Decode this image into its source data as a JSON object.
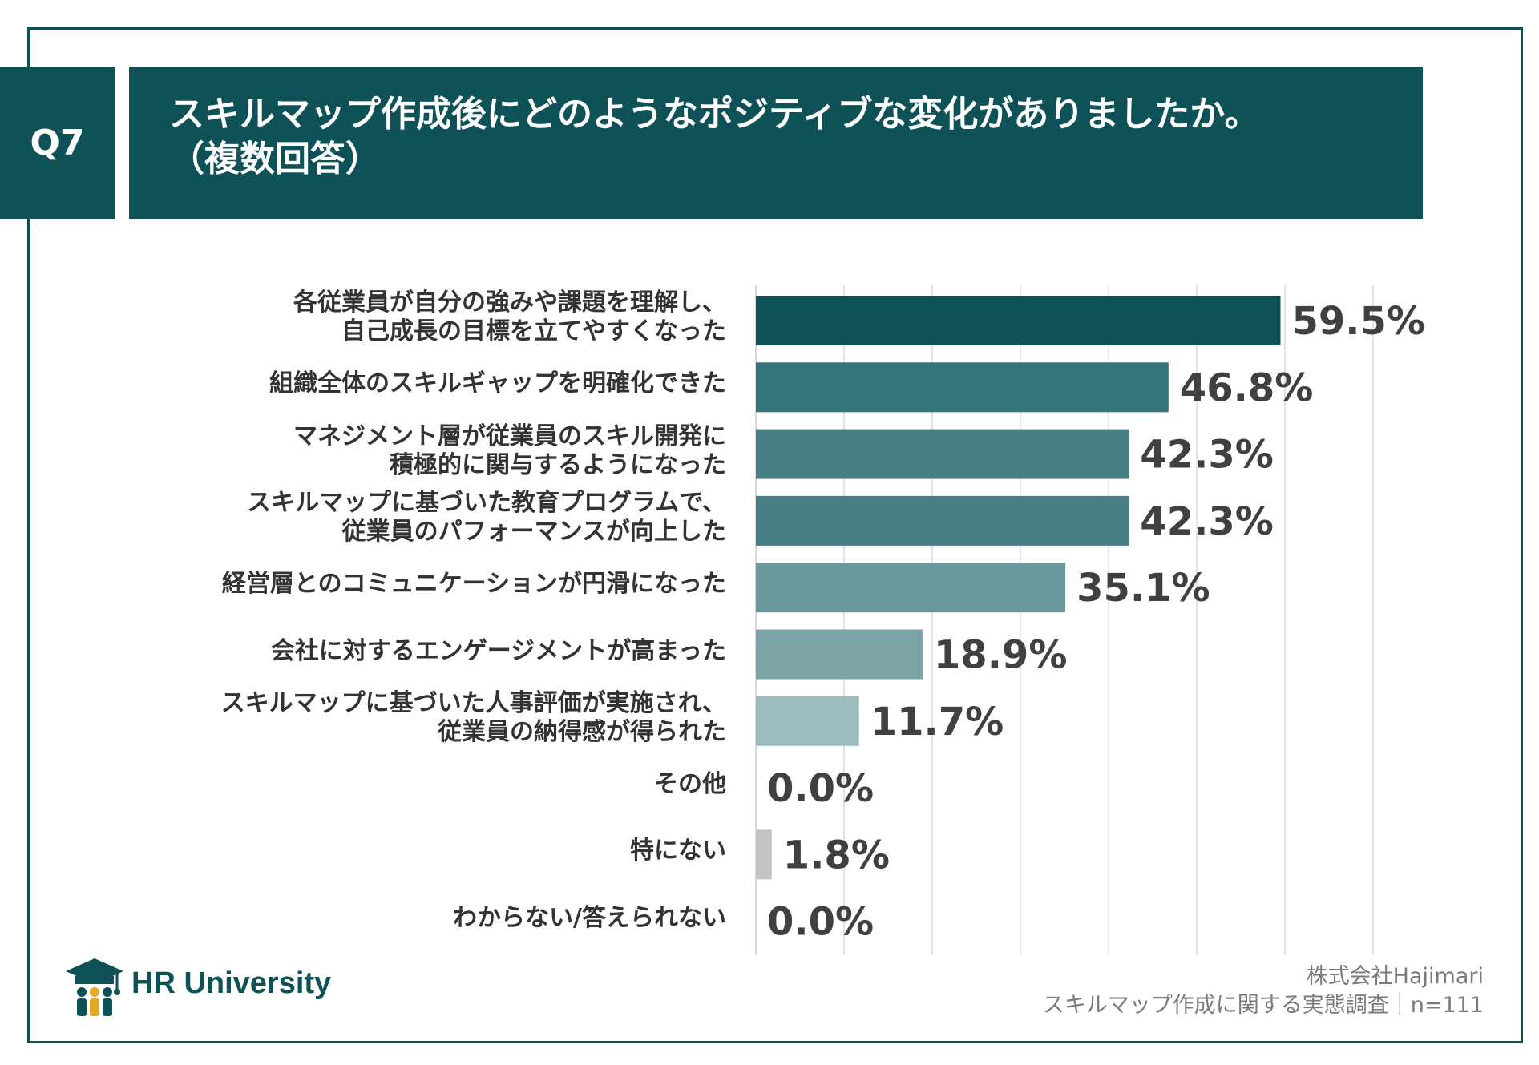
{
  "header": {
    "question_label": "Q7",
    "title_line1": "スキルマップ作成後にどのようなポジティブな変化がありましたか。",
    "title_line2": "（複数回答）"
  },
  "chart_data": {
    "type": "bar",
    "orientation": "horizontal",
    "title": "スキルマップ作成後にどのようなポジティブな変化がありましたか。（複数回答）",
    "categories": [
      [
        "各従業員が自分の強みや課題を理解し、",
        "自己成長の目標を立てやすくなった"
      ],
      [
        "組織全体のスキルギャップを明確化できた"
      ],
      [
        "マネジメント層が従業員のスキル開発に",
        "積極的に関与するようになった"
      ],
      [
        "スキルマップに基づいた教育プログラムで、",
        "従業員のパフォーマンスが向上した"
      ],
      [
        "経営層とのコミュニケーションが円滑になった"
      ],
      [
        "会社に対するエンゲージメントが高まった"
      ],
      [
        "スキルマップに基づいた人事評価が実施され、",
        "従業員の納得感が得られた"
      ],
      [
        "その他"
      ],
      [
        "特にない"
      ],
      [
        "わからない/答えられない"
      ]
    ],
    "values": [
      59.5,
      46.8,
      42.3,
      42.3,
      35.1,
      18.9,
      11.7,
      0.0,
      1.8,
      0.0
    ],
    "value_labels": [
      "59.5%",
      "46.8%",
      "42.3%",
      "42.3%",
      "35.1%",
      "18.9%",
      "11.7%",
      "0.0%",
      "1.8%",
      "0.0%"
    ],
    "bar_colors": [
      "#0e5257",
      "#34757a",
      "#477f84",
      "#477f84",
      "#6a989c",
      "#7ca4a7",
      "#9cbcbe",
      "#c4c4c4",
      "#c4c4c4",
      "#c4c4c4"
    ],
    "xlim": [
      0,
      70
    ],
    "grid": true,
    "legend": "none",
    "xlabel": "",
    "ylabel": ""
  },
  "footer": {
    "company": "株式会社Hajimari",
    "survey": "スキルマップ作成に関する実態調査｜n=111",
    "logo_text": "HR University"
  },
  "colors": {
    "brand": "#0e5257",
    "grid": "#d9d9d9",
    "text": "#333333"
  }
}
